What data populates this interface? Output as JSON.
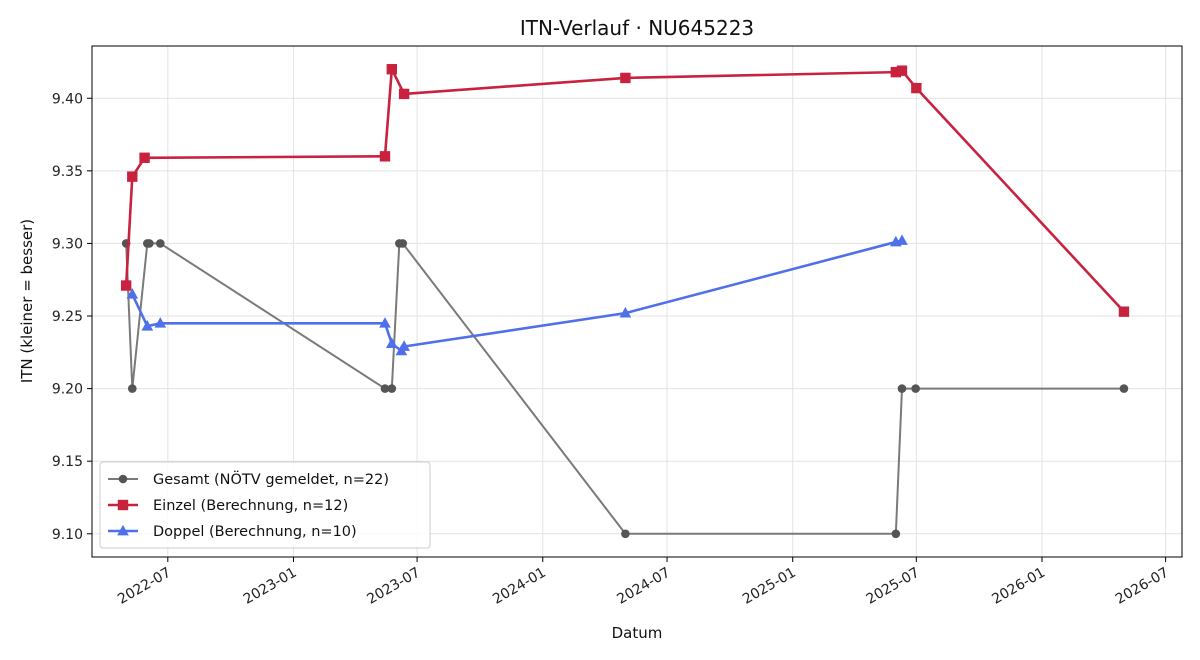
{
  "chart_data": {
    "type": "line",
    "title": "ITN-Verlauf · NU645223",
    "xlabel": "Datum",
    "ylabel": "ITN  (kleiner = besser)",
    "x_axis_type": "date",
    "xlim": [
      "2022-03-12",
      "2026-07-25"
    ],
    "ylim": [
      9.084,
      9.436
    ],
    "x_ticks": [
      "2022-07-01",
      "2023-01-01",
      "2023-07-01",
      "2024-01-01",
      "2024-07-01",
      "2025-01-01",
      "2025-07-01",
      "2026-01-01",
      "2026-07-01"
    ],
    "x_tick_labels": [
      "2022-07",
      "2023-01",
      "2023-07",
      "2024-01",
      "2024-07",
      "2025-01",
      "2025-07",
      "2026-01",
      "2026-07"
    ],
    "y_ticks": [
      9.1,
      9.15,
      9.2,
      9.25,
      9.3,
      9.35,
      9.4
    ],
    "y_tick_labels": [
      "9.10",
      "9.15",
      "9.20",
      "9.25",
      "9.30",
      "9.35",
      "9.40"
    ],
    "grid": true,
    "legend_position": "lower-left",
    "series": [
      {
        "name": "Gesamt (NÖTV gemeldet, n=22)",
        "marker": "circle",
        "color": "#555555",
        "line_color": "#7a7a7a",
        "points": [
          [
            "2022-05-01",
            9.3
          ],
          [
            "2022-05-10",
            9.2
          ],
          [
            "2022-06-01",
            9.3
          ],
          [
            "2022-06-04",
            9.3
          ],
          [
            "2022-06-20",
            9.3
          ],
          [
            "2023-05-15",
            9.2
          ],
          [
            "2023-05-25",
            9.2
          ],
          [
            "2023-06-05",
            9.3
          ],
          [
            "2023-06-10",
            9.3
          ],
          [
            "2024-05-01",
            9.1
          ],
          [
            "2025-06-01",
            9.1
          ],
          [
            "2025-06-10",
            9.2
          ],
          [
            "2025-06-30",
            9.2
          ],
          [
            "2026-05-01",
            9.2
          ]
        ]
      },
      {
        "name": "Einzel (Berechnung, n=12)",
        "marker": "square",
        "color": "#c9223f",
        "line_color": "#c9223f",
        "points": [
          [
            "2022-05-01",
            9.271
          ],
          [
            "2022-05-10",
            9.346
          ],
          [
            "2022-05-28",
            9.359
          ],
          [
            "2023-05-15",
            9.36
          ],
          [
            "2023-05-25",
            9.42
          ],
          [
            "2023-06-12",
            9.403
          ],
          [
            "2024-05-01",
            9.414
          ],
          [
            "2025-06-01",
            9.418
          ],
          [
            "2025-06-10",
            9.419
          ],
          [
            "2025-07-01",
            9.407
          ],
          [
            "2026-05-01",
            9.253
          ]
        ]
      },
      {
        "name": "Doppel (Berechnung, n=10)",
        "marker": "triangle",
        "color": "#5070ea",
        "line_color": "#5070ea",
        "points": [
          [
            "2022-05-10",
            9.265
          ],
          [
            "2022-06-01",
            9.243
          ],
          [
            "2022-06-20",
            9.245
          ],
          [
            "2023-05-15",
            9.245
          ],
          [
            "2023-05-25",
            9.231
          ],
          [
            "2023-06-08",
            9.226
          ],
          [
            "2023-06-12",
            9.229
          ],
          [
            "2024-05-01",
            9.252
          ],
          [
            "2025-06-01",
            9.301
          ],
          [
            "2025-06-10",
            9.302
          ]
        ]
      }
    ]
  }
}
